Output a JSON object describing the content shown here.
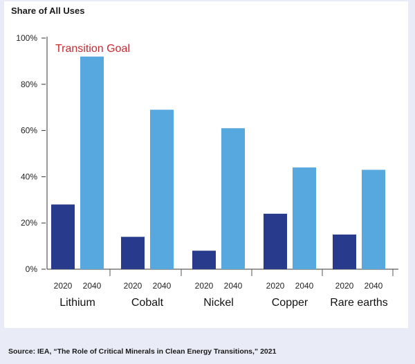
{
  "chart_data": {
    "type": "bar",
    "title": "Share of All Uses",
    "ylim": [
      0,
      100
    ],
    "yticks": [
      0,
      20,
      40,
      60,
      80,
      100
    ],
    "ytick_labels": [
      "0%",
      "20%",
      "40%",
      "60%",
      "80%",
      "100%"
    ],
    "categories": [
      "Lithium",
      "Cobalt",
      "Nickel",
      "Copper",
      "Rare earths"
    ],
    "series": [
      {
        "name": "2020",
        "values": [
          28,
          14,
          8,
          24,
          15
        ],
        "color": "#283a8c"
      },
      {
        "name": "2040",
        "values": [
          92,
          69,
          61,
          44,
          43
        ],
        "color": "#56a8de"
      }
    ],
    "annotation": {
      "text": "Transition Goal",
      "color": "#c8282e"
    },
    "grid": false,
    "legend": "none"
  },
  "source": "Source: IEA, “The Role of Critical Minerals in Clean Energy Transitions,” 2021"
}
